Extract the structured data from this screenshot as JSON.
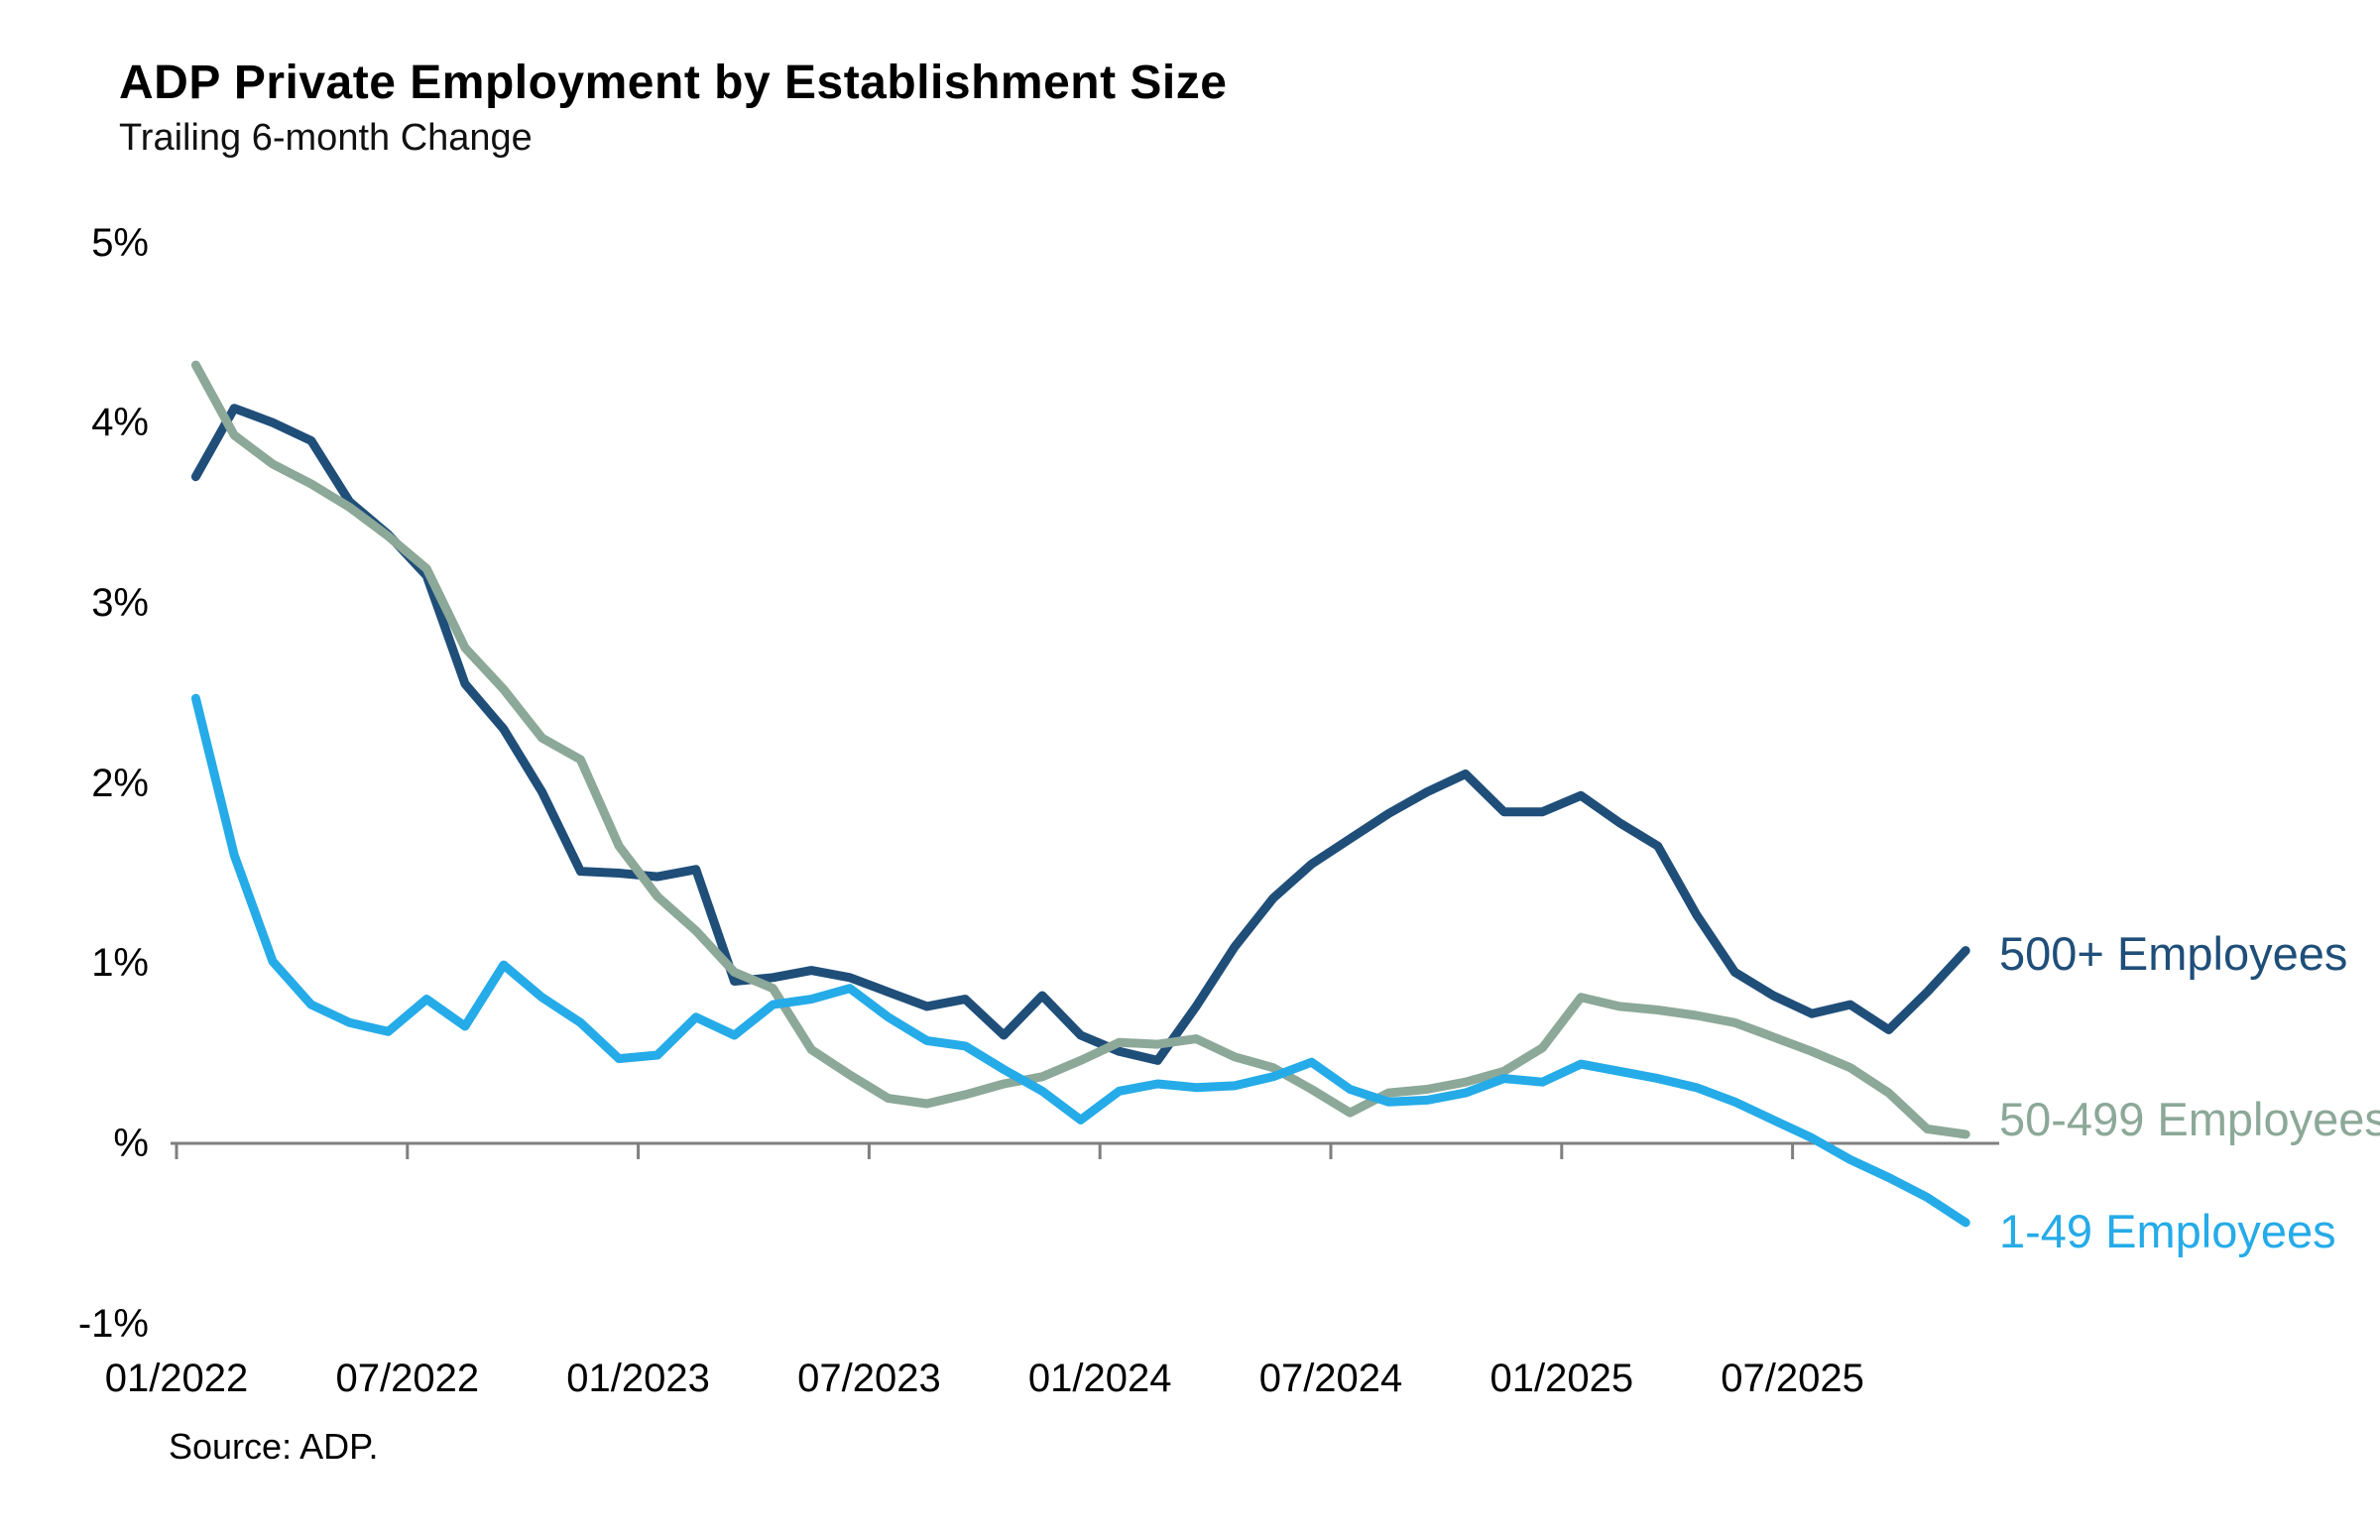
{
  "header": {
    "title": "ADP Private Employment by Establishment Size",
    "subtitle": "Trailing 6-month Change"
  },
  "footer": {
    "source": "Source: ADP."
  },
  "colors": {
    "navy": "#1F4E79",
    "sage_green": "#8CA898",
    "sky_blue": "#25ABE8",
    "axis_gray": "#7f7f7f",
    "text_black": "#000000"
  },
  "chart_data": {
    "type": "line",
    "title": "ADP Private Employment by Establishment Size",
    "subtitle": "Trailing 6-month Change",
    "source_note": "Source: ADP.",
    "xlabel": "",
    "ylabel": "",
    "ylim": [
      -1,
      5
    ],
    "grid": false,
    "legend_position": "right-end-of-line-labels",
    "x": [
      "01/2022",
      "02/2022",
      "03/2022",
      "04/2022",
      "05/2022",
      "06/2022",
      "07/2022",
      "08/2022",
      "09/2022",
      "10/2022",
      "11/2022",
      "12/2022",
      "01/2023",
      "02/2023",
      "03/2023",
      "04/2023",
      "05/2023",
      "06/2023",
      "07/2023",
      "08/2023",
      "09/2023",
      "10/2023",
      "11/2023",
      "12/2023",
      "01/2024",
      "02/2024",
      "03/2024",
      "04/2024",
      "05/2024",
      "06/2024",
      "07/2024",
      "08/2024",
      "09/2024",
      "10/2024",
      "11/2024",
      "12/2024",
      "01/2025",
      "02/2025",
      "03/2025",
      "04/2025",
      "05/2025",
      "06/2025",
      "07/2025",
      "08/2025",
      "09/2025",
      "10/2025",
      "11/2025"
    ],
    "y_axis": {
      "tick_labels": [
        "5%",
        "4%",
        "3%",
        "2%",
        "1%",
        "%",
        "-1%"
      ],
      "tick_values": [
        5,
        4,
        3,
        2,
        1,
        0,
        -1
      ]
    },
    "x_axis": {
      "tick_labels": [
        "01/2022",
        "07/2022",
        "01/2023",
        "07/2023",
        "01/2024",
        "07/2024",
        "01/2025",
        "07/2025"
      ],
      "tick_month_indexes": [
        0,
        6,
        12,
        18,
        24,
        30,
        36,
        42
      ]
    },
    "series": [
      {
        "name": "500+ Employees",
        "color": "#1F4E79",
        "values": [
          3.7,
          4.08,
          4.0,
          3.9,
          3.56,
          3.38,
          3.15,
          2.55,
          2.3,
          1.95,
          1.51,
          1.5,
          1.48,
          1.52,
          0.9,
          0.92,
          0.96,
          0.92,
          0.84,
          0.76,
          0.8,
          0.6,
          0.82,
          0.6,
          0.51,
          0.46,
          0.76,
          1.09,
          1.36,
          1.55,
          1.69,
          1.83,
          1.95,
          2.05,
          1.84,
          1.84,
          1.93,
          1.78,
          1.65,
          1.27,
          0.95,
          0.82,
          0.72,
          0.77,
          0.63,
          0.84,
          1.07
        ]
      },
      {
        "name": "50-499 Employees",
        "color": "#8CA898",
        "values": [
          4.32,
          3.93,
          3.77,
          3.66,
          3.53,
          3.37,
          3.19,
          2.75,
          2.52,
          2.25,
          2.13,
          1.65,
          1.37,
          1.18,
          0.95,
          0.86,
          0.52,
          0.38,
          0.25,
          0.22,
          0.27,
          0.33,
          0.37,
          0.46,
          0.56,
          0.55,
          0.58,
          0.48,
          0.42,
          0.3,
          0.17,
          0.28,
          0.3,
          0.34,
          0.4,
          0.53,
          0.81,
          0.76,
          0.74,
          0.71,
          0.67,
          0.59,
          0.51,
          0.42,
          0.28,
          0.08,
          0.05
        ]
      },
      {
        "name": "1-49 Employees",
        "color": "#25ABE8",
        "values": [
          2.47,
          1.6,
          1.01,
          0.77,
          0.67,
          0.62,
          0.8,
          0.65,
          0.99,
          0.81,
          0.67,
          0.47,
          0.49,
          0.7,
          0.6,
          0.77,
          0.8,
          0.86,
          0.7,
          0.57,
          0.54,
          0.41,
          0.29,
          0.13,
          0.29,
          0.33,
          0.31,
          0.32,
          0.37,
          0.45,
          0.3,
          0.23,
          0.24,
          0.28,
          0.36,
          0.34,
          0.44,
          0.4,
          0.36,
          0.31,
          0.23,
          0.13,
          0.03,
          -0.09,
          -0.19,
          -0.3,
          -0.44
        ]
      }
    ]
  }
}
